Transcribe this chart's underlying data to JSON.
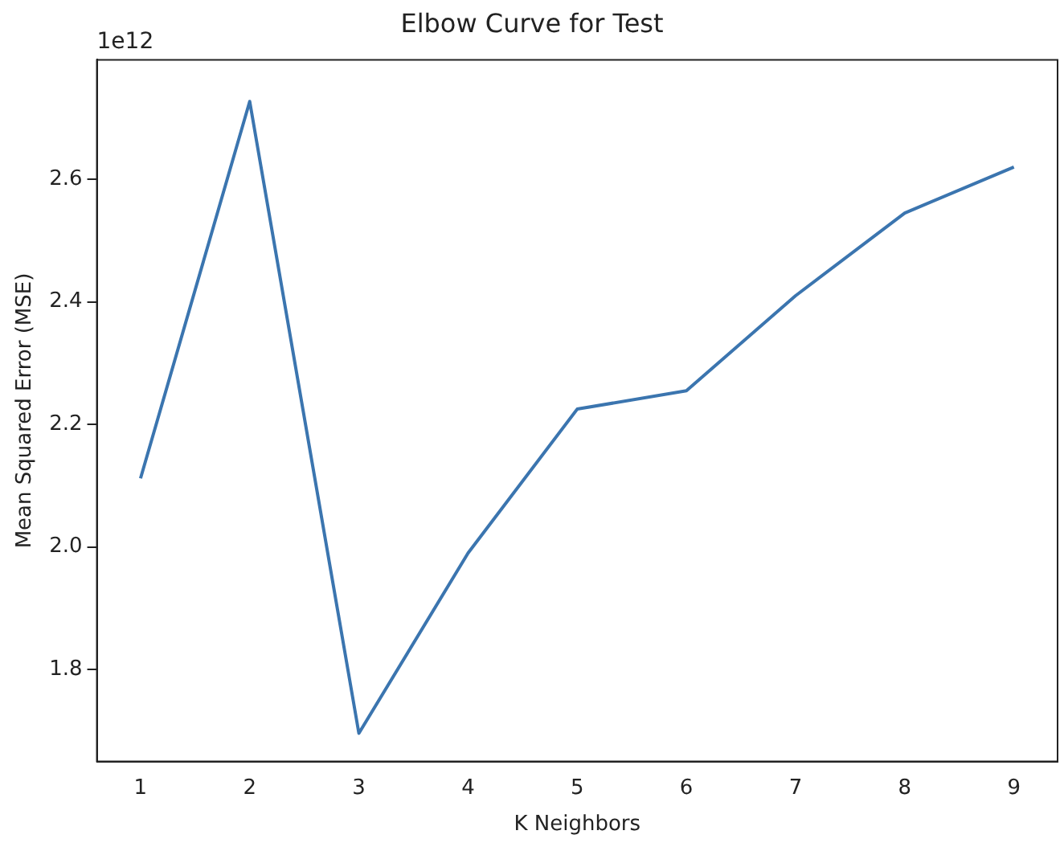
{
  "chart_data": {
    "type": "line",
    "title": "Elbow Curve for Test",
    "xlabel": "K Neighbors",
    "ylabel": "Mean Squared Error (MSE)",
    "annotations": [
      "1e12"
    ],
    "x": [
      1,
      2,
      3,
      4,
      5,
      6,
      7,
      8,
      9
    ],
    "series": [
      {
        "color": "#3b75af",
        "values": [
          2.112,
          2.727,
          1.696,
          1.99,
          2.225,
          2.255,
          2.41,
          2.545,
          2.62
        ]
      }
    ],
    "xlim": [
      0.6,
      9.4
    ],
    "xticks": [
      1,
      2,
      3,
      4,
      5,
      6,
      7,
      8,
      9
    ],
    "ylim": [
      1.65,
      2.795
    ],
    "yticks": [
      {
        "value": 1.8,
        "label": "1.8"
      },
      {
        "value": 2.0,
        "label": "2.0"
      },
      {
        "value": 2.2,
        "label": "2.2"
      },
      {
        "value": 2.4,
        "label": "2.4"
      },
      {
        "value": 2.6,
        "label": "2.6"
      }
    ],
    "grid": false,
    "legend": false,
    "marker": "none",
    "line_style": "solid"
  }
}
